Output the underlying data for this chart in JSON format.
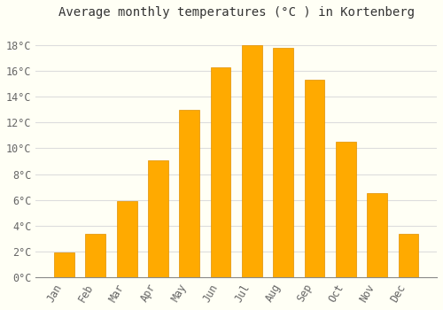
{
  "title": "Average monthly temperatures (°C ) in Kortenberg",
  "months": [
    "Jan",
    "Feb",
    "Mar",
    "Apr",
    "May",
    "Jun",
    "Jul",
    "Aug",
    "Sep",
    "Oct",
    "Nov",
    "Dec"
  ],
  "values": [
    1.9,
    3.4,
    5.9,
    9.1,
    13.0,
    16.3,
    18.0,
    17.8,
    15.3,
    10.5,
    6.5,
    3.4
  ],
  "bar_color": "#FFAA00",
  "bar_edge_color": "#E09000",
  "background_color": "#FFFFF5",
  "grid_color": "#DDDDDD",
  "ylim": [
    0,
    19.5
  ],
  "yticks": [
    0,
    2,
    4,
    6,
    8,
    10,
    12,
    14,
    16,
    18
  ],
  "title_fontsize": 10,
  "tick_fontsize": 8.5,
  "title_color": "#333333",
  "tick_color": "#666666"
}
